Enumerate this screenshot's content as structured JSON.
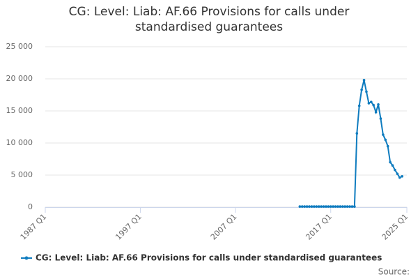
{
  "chart_data": {
    "type": "line",
    "title": "CG: Level: Liab: AF.66 Provisions for calls under standardised guarantees",
    "x": [
      "2013 Q4",
      "2014 Q1",
      "2014 Q2",
      "2014 Q3",
      "2014 Q4",
      "2015 Q1",
      "2015 Q2",
      "2015 Q3",
      "2015 Q4",
      "2016 Q1",
      "2016 Q2",
      "2016 Q3",
      "2016 Q4",
      "2017 Q1",
      "2017 Q2",
      "2017 Q3",
      "2017 Q4",
      "2018 Q1",
      "2018 Q2",
      "2018 Q3",
      "2018 Q4",
      "2019 Q1",
      "2019 Q2",
      "2019 Q3",
      "2019 Q4",
      "2020 Q1",
      "2020 Q2",
      "2020 Q3",
      "2020 Q4",
      "2021 Q1",
      "2021 Q2",
      "2021 Q3",
      "2021 Q4",
      "2022 Q1",
      "2022 Q2",
      "2022 Q3",
      "2022 Q4",
      "2023 Q1",
      "2023 Q2",
      "2023 Q3",
      "2023 Q4",
      "2024 Q1",
      "2024 Q2",
      "2024 Q3"
    ],
    "series": [
      {
        "name": "CG: Level: Liab: AF.66 Provisions for calls under standardised guarantees",
        "color": "#0f7cbf",
        "values": [
          100,
          100,
          100,
          100,
          100,
          100,
          100,
          100,
          100,
          100,
          100,
          100,
          100,
          100,
          100,
          100,
          100,
          100,
          100,
          100,
          100,
          100,
          100,
          100,
          11500,
          15800,
          18300,
          19800,
          18000,
          16200,
          16400,
          15900,
          14800,
          16000,
          13800,
          11300,
          10500,
          9500,
          7000,
          6500,
          5800,
          5200,
          4600,
          4800
        ]
      }
    ],
    "xlim": [
      "1987 Q1",
      "2025 Q1"
    ],
    "xticks": [
      "1987 Q1",
      "1997 Q1",
      "2007 Q1",
      "2017 Q1",
      "2025 Q1"
    ],
    "ylim": [
      0,
      25000
    ],
    "yticks": [
      {
        "value": 0,
        "label": "0"
      },
      {
        "value": 5000,
        "label": "5 000"
      },
      {
        "value": 10000,
        "label": "10 000"
      },
      {
        "value": 15000,
        "label": "15 000"
      },
      {
        "value": 20000,
        "label": "20 000"
      },
      {
        "value": 25000,
        "label": "25 000"
      }
    ],
    "grid": true,
    "legend": "bottom",
    "source": "Source:"
  }
}
